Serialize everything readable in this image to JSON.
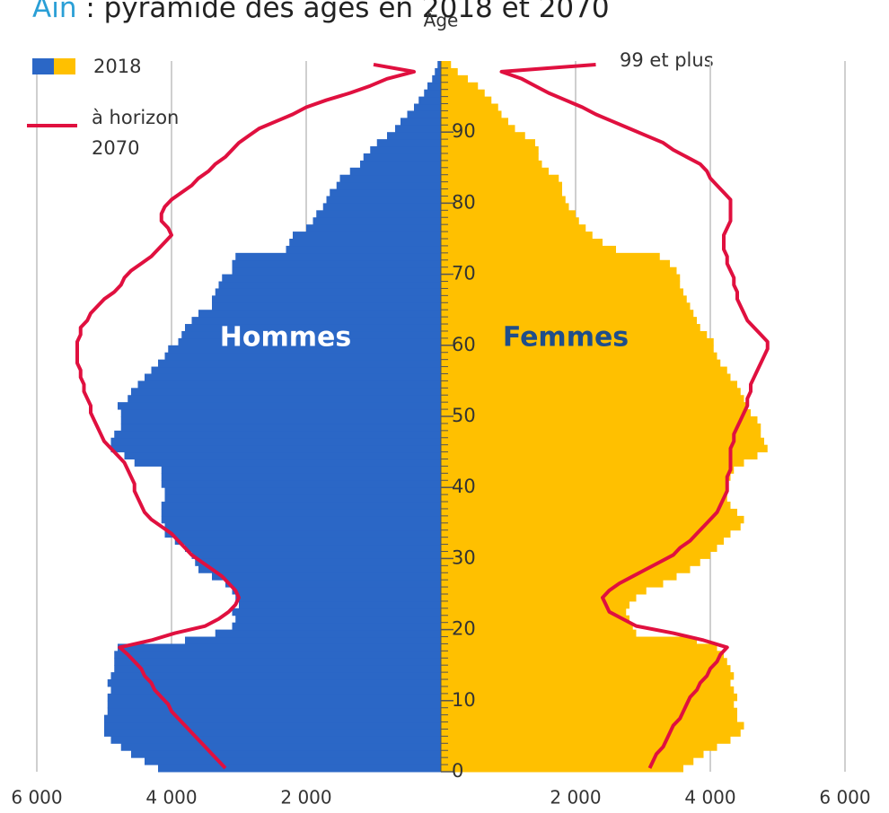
{
  "chart_data": {
    "type": "pyramid",
    "title_place": "Ain",
    "title": ": pyramide des âges en 2018 et 2070",
    "y_label": "Âge",
    "annotation": "99 et plus",
    "xlim": [
      -6000,
      6000
    ],
    "xticks": [
      {
        "value": -6000,
        "label": "6 000"
      },
      {
        "value": -4000,
        "label": "4 000"
      },
      {
        "value": -2000,
        "label": "2 000"
      },
      {
        "value": 2000,
        "label": "2 000"
      },
      {
        "value": 4000,
        "label": "4 000"
      },
      {
        "value": 6000,
        "label": "6 000"
      }
    ],
    "ylim": [
      0,
      99
    ],
    "yticks": [
      0,
      10,
      20,
      30,
      40,
      50,
      60,
      70,
      80,
      90
    ],
    "grid": true,
    "line_color": "#e0103f",
    "legend": {
      "bars": "2018",
      "line": "à horizon 2070"
    },
    "ages": [
      0,
      1,
      2,
      3,
      4,
      5,
      6,
      7,
      8,
      9,
      10,
      11,
      12,
      13,
      14,
      15,
      16,
      17,
      18,
      19,
      20,
      21,
      22,
      23,
      24,
      25,
      26,
      27,
      28,
      29,
      30,
      31,
      32,
      33,
      34,
      35,
      36,
      37,
      38,
      39,
      40,
      41,
      42,
      43,
      44,
      45,
      46,
      47,
      48,
      49,
      50,
      51,
      52,
      53,
      54,
      55,
      56,
      57,
      58,
      59,
      60,
      61,
      62,
      63,
      64,
      65,
      66,
      67,
      68,
      69,
      70,
      71,
      72,
      73,
      74,
      75,
      76,
      77,
      78,
      79,
      80,
      81,
      82,
      83,
      84,
      85,
      86,
      87,
      88,
      89,
      90,
      91,
      92,
      93,
      94,
      95,
      96,
      97,
      98,
      99
    ],
    "groups": [
      {
        "label": "Hommes",
        "side": "left",
        "color": "#2b67c6",
        "label_color": "#ffffff",
        "values_2018": [
          4200,
          4400,
          4600,
          4750,
          4900,
          5000,
          5000,
          5000,
          4950,
          4950,
          4950,
          4900,
          4950,
          4900,
          4850,
          4850,
          4850,
          4800,
          3800,
          3350,
          3100,
          3050,
          3100,
          3000,
          3050,
          3100,
          3200,
          3400,
          3600,
          3650,
          3700,
          3800,
          3950,
          4100,
          4100,
          4150,
          4150,
          4150,
          4100,
          4100,
          4150,
          4150,
          4150,
          4550,
          4700,
          4900,
          4900,
          4850,
          4750,
          4750,
          4750,
          4800,
          4650,
          4600,
          4500,
          4400,
          4300,
          4200,
          4100,
          4050,
          3900,
          3850,
          3800,
          3700,
          3600,
          3400,
          3400,
          3350,
          3300,
          3250,
          3100,
          3100,
          3050,
          2300,
          2250,
          2200,
          2000,
          1900,
          1850,
          1750,
          1700,
          1650,
          1550,
          1500,
          1350,
          1200,
          1150,
          1050,
          950,
          800,
          680,
          600,
          500,
          400,
          330,
          250,
          200,
          130,
          90,
          50
        ],
        "values_2070": [
          3200,
          3300,
          3400,
          3500,
          3600,
          3700,
          3800,
          3900,
          4000,
          4050,
          4150,
          4250,
          4300,
          4400,
          4450,
          4550,
          4650,
          4770,
          4300,
          3950,
          3500,
          3300,
          3150,
          3050,
          3000,
          3050,
          3150,
          3250,
          3400,
          3550,
          3700,
          3800,
          3900,
          4000,
          4150,
          4300,
          4400,
          4450,
          4500,
          4550,
          4550,
          4600,
          4650,
          4700,
          4800,
          4900,
          5000,
          5050,
          5100,
          5150,
          5200,
          5200,
          5250,
          5300,
          5300,
          5350,
          5350,
          5400,
          5400,
          5400,
          5400,
          5350,
          5350,
          5250,
          5200,
          5100,
          5000,
          4850,
          4750,
          4700,
          4600,
          4450,
          4300,
          4200,
          4100,
          4000,
          4050,
          4150,
          4150,
          4100,
          4000,
          3850,
          3700,
          3600,
          3450,
          3350,
          3200,
          3100,
          3000,
          2850,
          2700,
          2450,
          2200,
          2000,
          1700,
          1350,
          1050,
          800,
          400,
          1000
        ]
      },
      {
        "label": "Femmes",
        "side": "right",
        "color": "#ffc000",
        "label_color": "#1f4e8a",
        "values_2018": [
          3600,
          3750,
          3900,
          4100,
          4300,
          4450,
          4500,
          4400,
          4400,
          4350,
          4400,
          4350,
          4300,
          4350,
          4300,
          4250,
          4200,
          4100,
          3800,
          2900,
          2850,
          2800,
          2750,
          2800,
          2900,
          3050,
          3300,
          3500,
          3700,
          3850,
          4000,
          4100,
          4200,
          4300,
          4450,
          4500,
          4400,
          4300,
          4250,
          4250,
          4250,
          4300,
          4350,
          4500,
          4700,
          4850,
          4800,
          4750,
          4750,
          4700,
          4600,
          4550,
          4500,
          4450,
          4400,
          4300,
          4250,
          4150,
          4100,
          4050,
          4050,
          3950,
          3850,
          3800,
          3750,
          3700,
          3650,
          3600,
          3550,
          3550,
          3500,
          3400,
          3250,
          2600,
          2400,
          2250,
          2150,
          2050,
          2000,
          1900,
          1850,
          1800,
          1800,
          1750,
          1600,
          1500,
          1450,
          1450,
          1400,
          1250,
          1100,
          1000,
          900,
          850,
          750,
          650,
          550,
          400,
          250,
          150
        ],
        "values_2070": [
          3100,
          3150,
          3200,
          3300,
          3350,
          3400,
          3450,
          3550,
          3600,
          3650,
          3700,
          3800,
          3850,
          3950,
          4000,
          4100,
          4150,
          4250,
          3900,
          3450,
          2900,
          2700,
          2500,
          2450,
          2400,
          2500,
          2650,
          2850,
          3050,
          3250,
          3450,
          3550,
          3700,
          3800,
          3900,
          4000,
          4100,
          4150,
          4200,
          4250,
          4250,
          4250,
          4300,
          4300,
          4300,
          4300,
          4350,
          4350,
          4400,
          4450,
          4500,
          4550,
          4550,
          4600,
          4600,
          4650,
          4700,
          4750,
          4800,
          4850,
          4850,
          4750,
          4650,
          4550,
          4500,
          4450,
          4400,
          4400,
          4350,
          4350,
          4300,
          4250,
          4250,
          4200,
          4200,
          4200,
          4250,
          4300,
          4300,
          4300,
          4300,
          4200,
          4100,
          4000,
          3950,
          3850,
          3650,
          3450,
          3300,
          3050,
          2800,
          2550,
          2300,
          2100,
          1850,
          1600,
          1400,
          1200,
          900,
          2300
        ]
      }
    ]
  }
}
